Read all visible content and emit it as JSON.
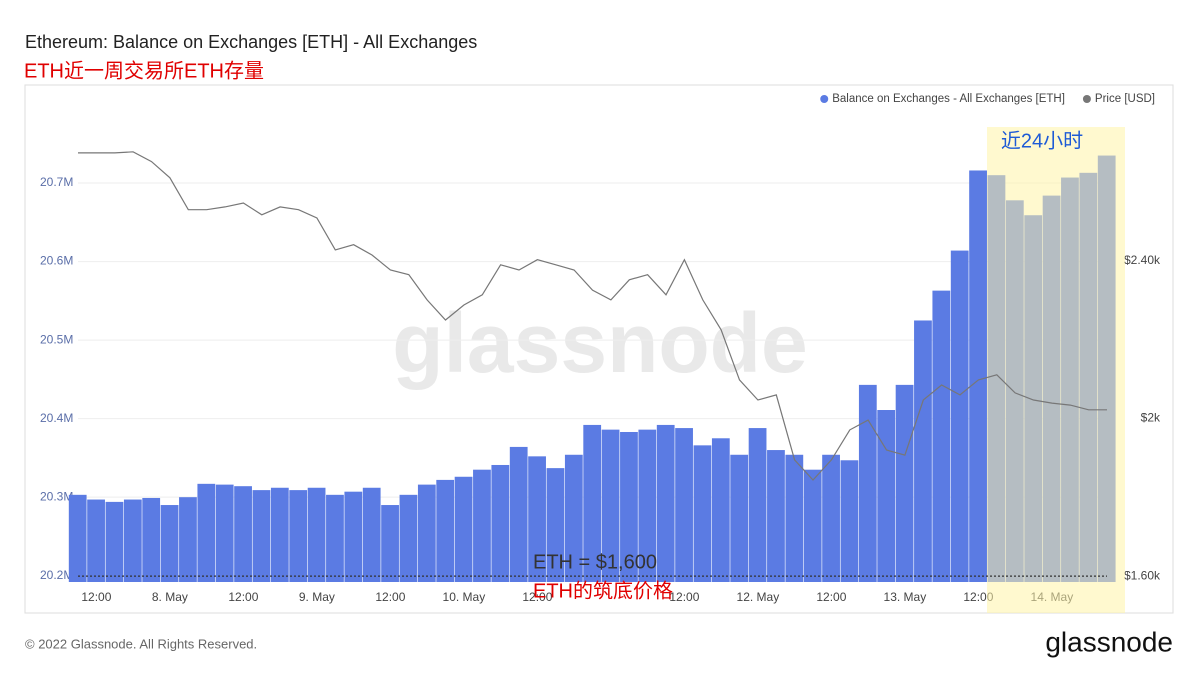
{
  "chart_data": {
    "type": "bar",
    "title": "Ethereum: Balance on Exchanges [ETH] - All Exchanges",
    "subtitle": "ETH近一周交易所ETH存量",
    "categories": [
      null,
      "12:00",
      null,
      null,
      null,
      "8. May",
      null,
      null,
      null,
      "12:00",
      null,
      null,
      null,
      "9. May",
      null,
      null,
      null,
      "12:00",
      null,
      null,
      null,
      "10. May",
      null,
      null,
      null,
      "12:00",
      null,
      null,
      null,
      null,
      null,
      null,
      null,
      "12:00",
      null,
      null,
      null,
      "12. May",
      null,
      null,
      null,
      "12:00",
      null,
      null,
      null,
      "13. May",
      null,
      null,
      null,
      "12:00",
      null,
      null,
      null,
      "14. May",
      null,
      null,
      null
    ],
    "series": [
      {
        "name": "Balance on Exchanges - All Exchanges [ETH]",
        "color": "#5b7be3",
        "type": "bar",
        "values": [
          20303000,
          20297000,
          20294000,
          20297000,
          20299000,
          20290000,
          20300000,
          20317000,
          20316000,
          20314000,
          20309000,
          20312000,
          20309000,
          20312000,
          20303000,
          20307000,
          20312000,
          20290000,
          20303000,
          20316000,
          20322000,
          20326000,
          20335000,
          20341000,
          20364000,
          20352000,
          20337000,
          20354000,
          20392000,
          20386000,
          20383000,
          20386000,
          20392000,
          20388000,
          20366000,
          20375000,
          20354000,
          20388000,
          20360000,
          20354000,
          20335000,
          20354000,
          20347000,
          20443000,
          20411000,
          20443000,
          20525000,
          20563000,
          20614000,
          20716000,
          20710000,
          20678000,
          20659000,
          20684000,
          20707000,
          20713000,
          20735000
        ]
      },
      {
        "name": "Price [USD]",
        "color": "#777777",
        "type": "line",
        "axis": "y2",
        "values": [
          2674,
          2674,
          2674,
          2677,
          2652,
          2611,
          2530,
          2530,
          2537,
          2547,
          2517,
          2537,
          2530,
          2509,
          2428,
          2441,
          2415,
          2377,
          2365,
          2301,
          2250,
          2288,
          2314,
          2390,
          2377,
          2403,
          2390,
          2377,
          2326,
          2301,
          2352,
          2365,
          2314,
          2403,
          2301,
          2225,
          2098,
          2047,
          2060,
          1895,
          1844,
          1895,
          1971,
          1996,
          1920,
          1907,
          2047,
          2085,
          2060,
          2098,
          2111,
          2065,
          2047,
          2039,
          2034,
          2022,
          2022
        ]
      }
    ],
    "ylim": [
      20192000,
      20793000
    ],
    "yticks": [
      {
        "value": 20200000,
        "label": "20.2M"
      },
      {
        "value": 20300000,
        "label": "20.3M"
      },
      {
        "value": 20400000,
        "label": "20.4M"
      },
      {
        "value": 20500000,
        "label": "20.5M"
      },
      {
        "value": 20600000,
        "label": "20.6M"
      },
      {
        "value": 20700000,
        "label": "20.7M"
      }
    ],
    "y2lim": [
      1585,
      2783
    ],
    "y2ticks": [
      {
        "value": 1600,
        "label": "$1.60k"
      },
      {
        "value": 2000,
        "label": "$2k"
      },
      {
        "value": 2400,
        "label": "$2.40k"
      }
    ],
    "grid": true,
    "legend": "top-right",
    "highlight_label": "近24小时",
    "reference_line": {
      "value": 1600,
      "label": "ETH = $1,600",
      "note": "ETH的筑底价格"
    },
    "watermark": "glassnode",
    "footer": "© 2022 Glassnode. All Rights Reserved.",
    "logo": "glassnode"
  }
}
